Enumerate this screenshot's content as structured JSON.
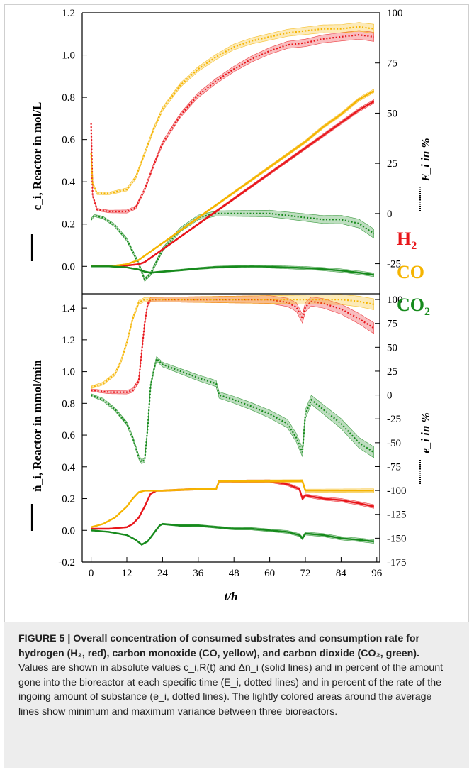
{
  "chart_data": [
    {
      "type": "line",
      "panel": "top",
      "x_range": [
        -3,
        97
      ],
      "x_ticks": [
        0,
        12,
        24,
        36,
        48,
        60,
        72,
        84,
        96
      ],
      "ylim_left": [
        -0.13,
        1.2
      ],
      "yticks_left": [
        "0.0",
        "0.2",
        "0.4",
        "0.6",
        "0.8",
        "1.0",
        "1.2"
      ],
      "ylim_right": [
        -40,
        100
      ],
      "yticks_right": [
        "-25",
        "0",
        "25",
        "50",
        "75",
        "100"
      ],
      "ylabel_left": "c_i, Reactor in mol/L",
      "ylabel_right": "E_i in %",
      "series_solid": [
        {
          "name": "H2",
          "color": "#e8161b",
          "x": [
            0,
            6,
            12,
            16,
            18,
            20,
            24,
            30,
            36,
            42,
            48,
            54,
            60,
            66,
            72,
            78,
            84,
            90,
            95
          ],
          "values": [
            0,
            0,
            0.004,
            0.01,
            0.02,
            0.04,
            0.08,
            0.14,
            0.2,
            0.26,
            0.32,
            0.38,
            0.44,
            0.5,
            0.56,
            0.62,
            0.68,
            0.74,
            0.78
          ]
        },
        {
          "name": "CO",
          "color": "#f5b400",
          "x": [
            0,
            6,
            12,
            16,
            18,
            20,
            24,
            30,
            36,
            42,
            48,
            54,
            60,
            66,
            72,
            78,
            84,
            90,
            95
          ],
          "values": [
            0,
            0,
            0.01,
            0.03,
            0.05,
            0.07,
            0.11,
            0.17,
            0.23,
            0.29,
            0.35,
            0.41,
            0.47,
            0.53,
            0.59,
            0.66,
            0.72,
            0.79,
            0.83
          ]
        },
        {
          "name": "CO2",
          "color": "#168a1c",
          "x": [
            0,
            6,
            12,
            16,
            18,
            20,
            24,
            30,
            36,
            42,
            48,
            54,
            60,
            66,
            72,
            78,
            84,
            90,
            95
          ],
          "values": [
            0,
            0,
            -0.005,
            -0.015,
            -0.025,
            -0.03,
            -0.025,
            -0.018,
            -0.01,
            -0.004,
            -0.002,
            0,
            -0.002,
            -0.005,
            -0.008,
            -0.013,
            -0.02,
            -0.03,
            -0.04
          ]
        }
      ],
      "series_dotted_percent": [
        {
          "name": "H2",
          "color": "#e8161b",
          "x": [
            0,
            0.5,
            2,
            6,
            12,
            15,
            18,
            21,
            24,
            30,
            36,
            42,
            48,
            54,
            60,
            66,
            72,
            78,
            84,
            90,
            95
          ],
          "values": [
            45,
            9,
            2,
            1,
            1,
            3,
            12,
            24,
            35,
            49,
            59,
            66,
            72,
            77,
            81,
            84,
            85,
            87,
            88,
            89,
            88
          ]
        },
        {
          "name": "CO",
          "color": "#f5b400",
          "x": [
            0,
            0.5,
            2,
            6,
            12,
            15,
            18,
            21,
            24,
            30,
            36,
            42,
            48,
            54,
            60,
            66,
            72,
            78,
            84,
            90,
            95
          ],
          "values": [
            30,
            15,
            10,
            10,
            12,
            18,
            30,
            42,
            52,
            64,
            72,
            78,
            83,
            86,
            88,
            90,
            91,
            92,
            92,
            93,
            92
          ]
        },
        {
          "name": "CO2",
          "color": "#168a1c",
          "x": [
            0,
            1,
            4,
            8,
            12,
            16,
            18,
            20,
            24,
            30,
            36,
            42,
            48,
            54,
            60,
            66,
            72,
            78,
            84,
            90,
            95
          ],
          "values": [
            -3,
            -1,
            -2,
            -6,
            -13,
            -25,
            -33,
            -30,
            -18,
            -8,
            -2,
            0,
            0,
            0,
            0,
            -1,
            -2,
            -3,
            -3,
            -5,
            -10
          ]
        }
      ]
    },
    {
      "type": "line",
      "panel": "bottom",
      "x_range": [
        -3,
        97
      ],
      "x_ticks": [
        0,
        12,
        24,
        36,
        48,
        60,
        72,
        84,
        96
      ],
      "xtick_labels": [
        "0",
        "12",
        "24",
        "36",
        "48",
        "60",
        "72",
        "84",
        "96"
      ],
      "xlabel": "t/h",
      "ylim_left": [
        -0.2,
        1.49
      ],
      "yticks_left": [
        "-0.2",
        "0.0",
        "0.2",
        "0.4",
        "0.6",
        "0.8",
        "1.0",
        "1.2",
        "1.4"
      ],
      "ylim_right": [
        -175,
        106
      ],
      "yticks_right": [
        "-175",
        "-150",
        "-125",
        "-100",
        "-75",
        "-50",
        "-25",
        "0",
        "25",
        "50",
        "75",
        "100"
      ],
      "ylabel_left": "ṅ_i, Reactor in mmol/min",
      "ylabel_right": "e_i in %",
      "series_solid": [
        {
          "name": "H2",
          "color": "#e8161b",
          "x": [
            0,
            6,
            12,
            14,
            16,
            18,
            20,
            22,
            24,
            36,
            42,
            43,
            60,
            66,
            70,
            71,
            72,
            78,
            84,
            90,
            95
          ],
          "values": [
            0.01,
            0.01,
            0.02,
            0.04,
            0.08,
            0.15,
            0.23,
            0.25,
            0.25,
            0.26,
            0.26,
            0.31,
            0.31,
            0.29,
            0.26,
            0.2,
            0.22,
            0.2,
            0.19,
            0.17,
            0.15
          ]
        },
        {
          "name": "CO",
          "color": "#f5b400",
          "x": [
            0,
            4,
            8,
            12,
            14,
            16,
            18,
            20,
            24,
            36,
            42,
            43,
            60,
            66,
            70,
            71,
            72,
            84,
            95
          ],
          "values": [
            0.02,
            0.04,
            0.08,
            0.15,
            0.2,
            0.24,
            0.25,
            0.25,
            0.25,
            0.26,
            0.26,
            0.31,
            0.31,
            0.31,
            0.31,
            0.31,
            0.25,
            0.25,
            0.25
          ]
        },
        {
          "name": "CO2",
          "color": "#168a1c",
          "x": [
            0,
            6,
            12,
            15,
            17,
            19,
            21,
            23,
            24,
            30,
            36,
            42,
            48,
            54,
            60,
            66,
            70,
            71,
            72,
            78,
            84,
            90,
            95
          ],
          "values": [
            0,
            -0.01,
            -0.03,
            -0.06,
            -0.09,
            -0.07,
            -0.02,
            0.03,
            0.04,
            0.03,
            0.03,
            0.02,
            0.01,
            0.01,
            0,
            -0.01,
            -0.03,
            -0.05,
            -0.02,
            -0.03,
            -0.05,
            -0.06,
            -0.07
          ]
        }
      ],
      "series_dotted_percent": [
        {
          "name": "H2",
          "color": "#e8161b",
          "x": [
            0,
            6,
            12,
            14,
            16,
            17,
            18,
            19,
            20,
            22,
            24,
            36,
            42,
            48,
            60,
            66,
            69,
            71,
            72,
            74,
            78,
            84,
            90,
            95
          ],
          "values": [
            5,
            3,
            3,
            5,
            15,
            45,
            75,
            95,
            100,
            100,
            100,
            100,
            100,
            100,
            100,
            97,
            92,
            80,
            92,
            98,
            96,
            90,
            80,
            70
          ]
        },
        {
          "name": "CO",
          "color": "#f5b400",
          "x": [
            0,
            4,
            8,
            10,
            12,
            14,
            16,
            18,
            24,
            36,
            48,
            60,
            72,
            84,
            90,
            95
          ],
          "values": [
            8,
            12,
            22,
            35,
            55,
            80,
            97,
            100,
            100,
            100,
            100,
            100,
            100,
            100,
            98,
            95
          ]
        },
        {
          "name": "CO2",
          "color": "#168a1c",
          "x": [
            0,
            4,
            8,
            12,
            14,
            16,
            17,
            18,
            19,
            20,
            21,
            22,
            24,
            30,
            36,
            42,
            43,
            48,
            54,
            60,
            66,
            69,
            71,
            72,
            74,
            78,
            84,
            90,
            95
          ],
          "values": [
            0,
            -5,
            -15,
            -30,
            -45,
            -65,
            -70,
            -68,
            -35,
            10,
            25,
            38,
            32,
            25,
            18,
            12,
            0,
            -5,
            -12,
            -20,
            -30,
            -45,
            -60,
            -20,
            -5,
            -15,
            -30,
            -50,
            -60
          ]
        }
      ]
    }
  ],
  "legend": [
    {
      "label": "H2",
      "text": "H",
      "sub": "2",
      "color": "#e8161b"
    },
    {
      "label": "CO",
      "text": "CO",
      "sub": "",
      "color": "#f5b400"
    },
    {
      "label": "CO2",
      "text": "CO",
      "sub": "2",
      "color": "#168a1c"
    }
  ],
  "caption": {
    "label": "FIGURE 5 | ",
    "title": "Overall concentration of consumed substrates and consumption rate for hydrogen (H₂, red), carbon monoxide (CO, yellow), and carbon dioxide (CO₂, green).",
    "body": " Values are shown in absolute values c_i,R(t) and Δṅ_i (solid lines) and in percent of the amount gone into the bioreactor at each specific time (E_i, dotted lines) and in percent of the rate of the ingoing amount of substance (e_i, dotted lines). The lightly colored areas around the average lines show minimum and maximum variance between three bioreactors."
  }
}
